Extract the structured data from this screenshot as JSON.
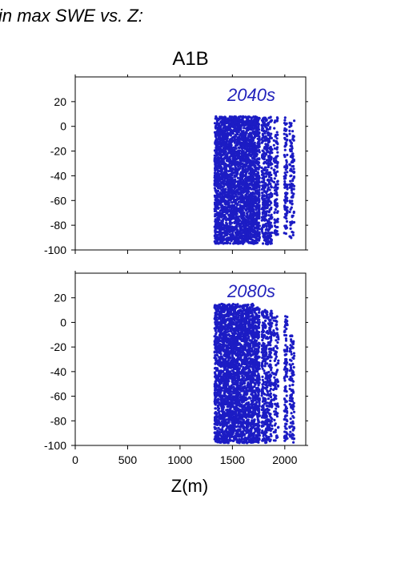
{
  "header": {
    "caption": "in max SWE vs. Z:"
  },
  "figure": {
    "scenario": "A1B",
    "xlabel": "Z(m)"
  },
  "colors": {
    "points": "#1c1cc4",
    "label": "#2222bb",
    "axis": "#000000"
  },
  "chart_data": [
    {
      "type": "scatter",
      "title": "A1B",
      "annotation": "2040s",
      "xlabel": "",
      "ylabel": "",
      "xlim": [
        0,
        2200
      ],
      "ylim": [
        -100,
        40
      ],
      "xticks": [
        0,
        500,
        1000,
        1500,
        2000
      ],
      "yticks": [
        -100,
        -80,
        -60,
        -40,
        -20,
        0,
        20
      ],
      "xtick_labels_shown": false,
      "grid": false,
      "point_color": "#1c1cc4",
      "columns": [
        {
          "x": [
            1330,
            1700
          ],
          "y": [
            -95,
            8
          ],
          "density": "dense"
        },
        {
          "x": [
            1700,
            1760
          ],
          "y": [
            -95,
            8
          ],
          "density": "medium"
        },
        {
          "x": [
            1780,
            1880
          ],
          "y": [
            -96,
            8
          ],
          "density": "medium"
        },
        {
          "x": [
            1895,
            1935
          ],
          "y": [
            -90,
            8
          ],
          "density": "sparse"
        },
        {
          "x": [
            1995,
            2025
          ],
          "y": [
            -88,
            7
          ],
          "density": "sparse"
        },
        {
          "x": [
            2045,
            2090
          ],
          "y": [
            -92,
            6
          ],
          "density": "sparse"
        }
      ]
    },
    {
      "type": "scatter",
      "title": "",
      "annotation": "2080s",
      "xlabel": "Z(m)",
      "ylabel": "",
      "xlim": [
        0,
        2200
      ],
      "ylim": [
        -100,
        40
      ],
      "xticks": [
        0,
        500,
        1000,
        1500,
        2000
      ],
      "yticks": [
        -100,
        -80,
        -60,
        -40,
        -20,
        0,
        20
      ],
      "xtick_labels_shown": true,
      "grid": false,
      "point_color": "#1c1cc4",
      "columns": [
        {
          "x": [
            1330,
            1700
          ],
          "y": [
            -98,
            15
          ],
          "density": "dense"
        },
        {
          "x": [
            1700,
            1760
          ],
          "y": [
            -98,
            12
          ],
          "density": "medium"
        },
        {
          "x": [
            1780,
            1880
          ],
          "y": [
            -98,
            10
          ],
          "density": "medium"
        },
        {
          "x": [
            1890,
            1940
          ],
          "y": [
            -98,
            8
          ],
          "density": "sparse"
        },
        {
          "x": [
            1995,
            2025
          ],
          "y": [
            -98,
            5
          ],
          "density": "sparse"
        },
        {
          "x": [
            2045,
            2090
          ],
          "y": [
            -98,
            -10
          ],
          "density": "sparse"
        }
      ]
    }
  ]
}
